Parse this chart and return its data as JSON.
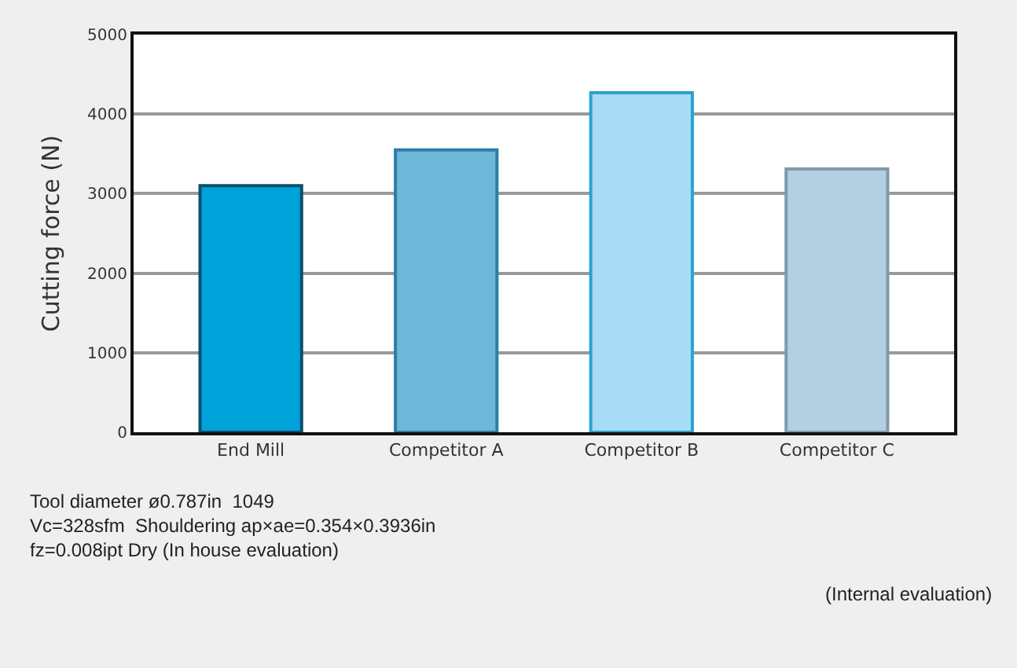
{
  "chart_data": {
    "type": "bar",
    "ylabel": "Cutting force (N)",
    "categories": [
      "End Mill",
      "Competitor A",
      "Competitor B",
      "Competitor C"
    ],
    "values": [
      3100,
      3550,
      4270,
      3310
    ],
    "colors": [
      "#00a3d9",
      "#6fb7d8",
      "#a8dcf5",
      "#b3d0e3"
    ],
    "ylim": [
      0,
      5000
    ],
    "yticks": [
      0,
      1000,
      2000,
      3000,
      4000,
      5000
    ],
    "grid": "y",
    "legend": false,
    "annotations": [
      "Tool diameter ø0.787in  1049\nVc=328sfm  Shouldering ap×ae=0.354×0.3936in\nfz=0.008ipt Dry (In house evaluation)",
      "(Internal evaluation)"
    ]
  }
}
